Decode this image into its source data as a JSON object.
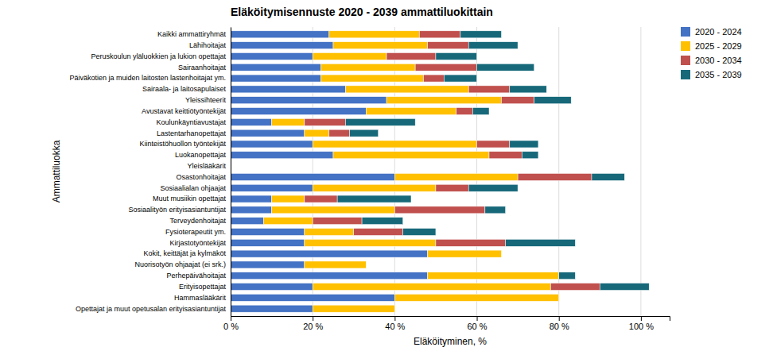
{
  "chart_data": {
    "type": "bar",
    "orientation": "horizontal",
    "stacked": true,
    "title": "Eläköitymisennuste 2020 - 2039 ammattiluokittain",
    "xlabel": "Eläköityminen, %",
    "ylabel": "Ammattiluokka",
    "categories": [
      "Kaikki ammattiryhmät",
      "Lähihoitajat",
      "Peruskoulun yläluokkien ja lukion opettajat",
      "Sairaanhoitajat",
      "Päiväkotien ja muiden laitosten lastenhoitajat ym.",
      "Sairaala- ja laitosapulaiset",
      "Yleissihteerit",
      "Avustavat keittiötyöntekijät",
      "Koulunkäyntiavustajat",
      "Lastentarhanopettajat",
      "Kiinteistöhuollon työntekijät",
      "Luokanopettajat",
      "Yleislääkärit",
      "Osastonhoitajat",
      "Sosiaalialan ohjaajat",
      "Muut musiikin opettajat",
      "Sosiaalityön erityisasiantuntijat",
      "Terveydenhoitajat",
      "Fysioterapeutit ym.",
      "Kirjastotyöntekijät",
      "Kokit, keittäjät ja kylmäköt",
      "Nuorisotyön ohjaajat (ei srk.)",
      "Perhepäivähoitajat",
      "Erityisopettajat",
      "Hammaslääkärit",
      "Opettajat ja muut opetusalan erityisasiantuntijat"
    ],
    "series": [
      {
        "name": "2020 - 2024",
        "color": "#4472C4",
        "values": [
          24,
          25,
          20,
          22,
          22,
          28,
          38,
          33,
          10,
          18,
          20,
          25,
          0,
          40,
          20,
          10,
          10,
          8,
          18,
          18,
          48,
          18,
          48,
          20,
          40,
          20
        ]
      },
      {
        "name": "2025 - 2029",
        "color": "#FFC000",
        "values": [
          22,
          23,
          18,
          23,
          25,
          30,
          28,
          22,
          8,
          6,
          40,
          38,
          0,
          30,
          30,
          8,
          30,
          12,
          12,
          32,
          18,
          15,
          32,
          58,
          40,
          20
        ]
      },
      {
        "name": "2030 - 2034",
        "color": "#C0504D",
        "values": [
          10,
          10,
          12,
          15,
          5,
          10,
          8,
          4,
          10,
          5,
          8,
          8,
          0,
          18,
          8,
          8,
          22,
          12,
          12,
          17,
          0,
          0,
          0,
          12,
          0,
          0
        ]
      },
      {
        "name": "2035 - 2039",
        "color": "#17697A",
        "values": [
          10,
          12,
          10,
          14,
          8,
          9,
          9,
          4,
          17,
          7,
          7,
          4,
          0,
          8,
          12,
          18,
          5,
          10,
          8,
          17,
          0,
          0,
          4,
          12,
          0,
          0
        ]
      }
    ],
    "xlim": [
      0,
      107
    ],
    "xticks": [
      {
        "value": 0,
        "label": "0 %"
      },
      {
        "value": 20,
        "label": "20 %"
      },
      {
        "value": 40,
        "label": "40 %"
      },
      {
        "value": 60,
        "label": "60 %"
      },
      {
        "value": 80,
        "label": "80 %"
      },
      {
        "value": 100,
        "label": "100 %"
      }
    ],
    "grid": true,
    "legend": "upper right"
  }
}
